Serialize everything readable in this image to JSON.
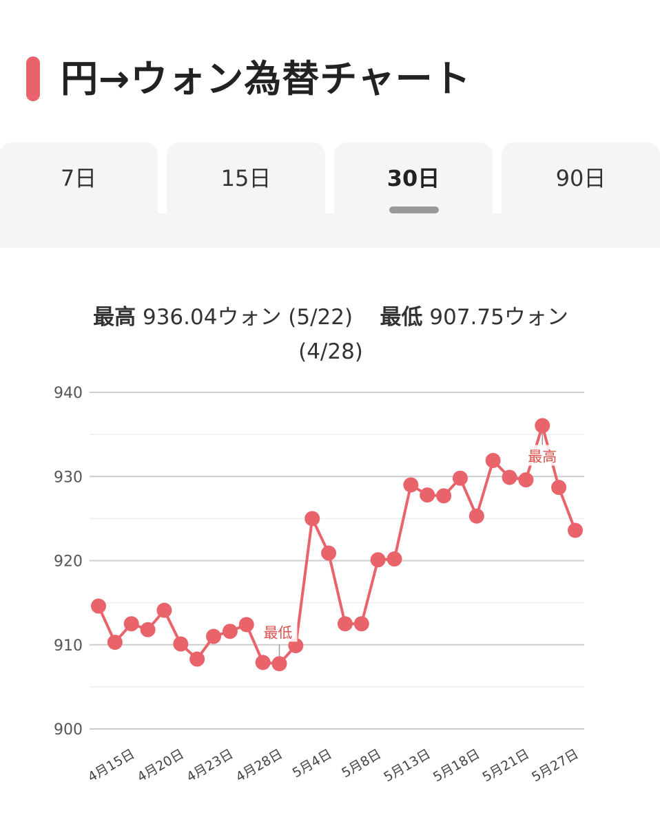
{
  "header": {
    "title": "円→ウォン為替チャート"
  },
  "tabs": [
    "7日",
    "15日",
    "30日",
    "90日"
  ],
  "active_tab": 2,
  "summary": [
    {
      "label": "最高",
      "text": "936.04ウォン (5/22)"
    },
    {
      "label": "最低",
      "text": "907.75ウォン (4/28)"
    }
  ],
  "chart_data": {
    "type": "line",
    "categories": [
      null,
      null,
      "4月15日",
      null,
      null,
      "4月20日",
      null,
      null,
      "4月23日",
      null,
      null,
      "4月28日",
      null,
      null,
      "5月4日",
      null,
      null,
      "5月8日",
      null,
      null,
      "5月13日",
      null,
      null,
      "5月18日",
      null,
      null,
      "5月21日",
      null,
      null,
      "5月27日"
    ],
    "series": [
      {
        "name": "円→ウォン",
        "color": "#e8636a",
        "values": [
          914.6,
          910.3,
          912.5,
          911.8,
          914.1,
          910.1,
          908.3,
          911.0,
          911.6,
          912.4,
          907.9,
          907.75,
          909.9,
          925.0,
          920.9,
          912.5,
          912.5,
          920.1,
          920.2,
          929.0,
          927.8,
          927.7,
          929.8,
          925.3,
          931.9,
          929.9,
          929.6,
          936.04,
          928.7,
          923.6
        ]
      }
    ],
    "ylim": [
      900,
      940
    ],
    "yticks": [
      900,
      910,
      920,
      930,
      940
    ],
    "minor_grid": [
      905,
      915,
      925,
      935
    ],
    "grid": true,
    "max_label": "最高",
    "min_label": "最低"
  }
}
